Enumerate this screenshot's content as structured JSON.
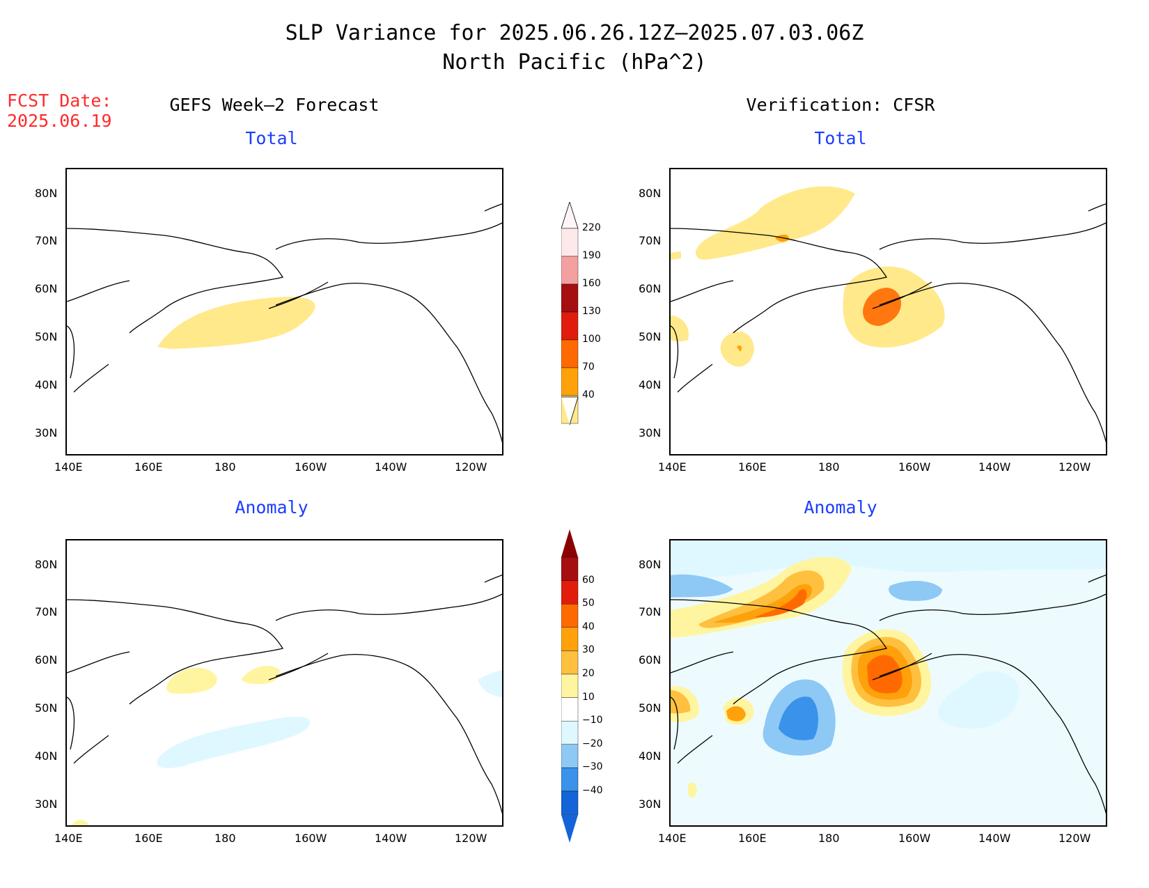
{
  "header": {
    "title_line1": "SLP Variance for 2025.06.26.12Z–2025.07.03.06Z",
    "title_line2": "North Pacific (hPa^2)",
    "fcst_label": "FCST Date:",
    "fcst_date": "2025.06.19"
  },
  "columns": {
    "left_title": "GEFS Week–2 Forecast",
    "right_title": "Verification: CFSR"
  },
  "panels": {
    "total_label": "Total",
    "anomaly_label": "Anomaly"
  },
  "axes": {
    "lat_labels": [
      "80N",
      "70N",
      "60N",
      "50N",
      "40N",
      "30N"
    ],
    "lon_labels": [
      "140E",
      "160E",
      "180",
      "160W",
      "140W",
      "120W"
    ]
  },
  "colorbar_total": {
    "labels": [
      "220",
      "190",
      "160",
      "130",
      "100",
      "70",
      "40"
    ],
    "colors": [
      "#fde9e9",
      "#f2a0a0",
      "#a50f0f",
      "#e11c0c",
      "#ff6a00",
      "#ffa10a",
      "#ffe98a"
    ]
  },
  "colorbar_anomaly": {
    "labels": [
      "60",
      "50",
      "40",
      "30",
      "20",
      "10",
      "−10",
      "−20",
      "−30",
      "−40"
    ],
    "colors": [
      "#a50f0f",
      "#e11c0c",
      "#ff6a00",
      "#ffa10a",
      "#ffc040",
      "#fff5a0",
      "#ffffff",
      "#dff8ff",
      "#8ec8f5",
      "#3a92ea",
      "#1463d8"
    ]
  }
}
